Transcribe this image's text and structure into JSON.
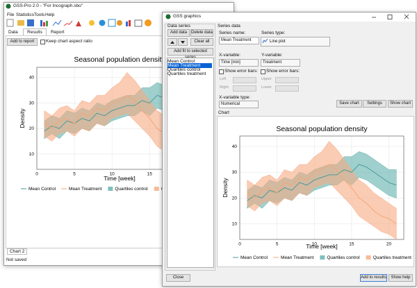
{
  "main_window": {
    "title": "GSS-Pro 2.0 - \"For Incograph.sbo\"",
    "menu": [
      "File",
      "Statistics",
      "Tools",
      "Help"
    ],
    "tabs": [
      "Data",
      "Results",
      "Report"
    ],
    "add_to_report": "Add to report",
    "keep_aspect": "Keep chart aspect ratio",
    "chart_tab": "Chart 2",
    "status": "Not saved"
  },
  "dialog": {
    "title": "GSS graphics",
    "data_series_label": "Data series",
    "add_data": "Add data",
    "delete_data": "Delete data",
    "clear_all": "Clear all",
    "add_fit": "Add fit to selected series",
    "series_list": [
      "Mean Control",
      "Mean Treatment",
      "Quartiles control",
      "Quartiles treatment"
    ],
    "series_data_label": "Series data",
    "series_name_label": "Series name:",
    "series_name": "Mean Treatment",
    "series_type_label": "Series type:",
    "series_type": "Line plot",
    "x_variable_label": "X-variable:",
    "x_variable": "Time [min]",
    "y_variable_label": "Y-variable:",
    "y_variable": "Treatment",
    "show_error_bars": "Show error bars:",
    "left": "Left",
    "right": "Right",
    "upper": "Upper",
    "lower": "Lower",
    "x_variable_type_label": "X-variable type:",
    "x_variable_type": "Numerical",
    "save_chart": "Save chart",
    "settings": "Settings",
    "show_chart": "Show chart",
    "chart_label": "Chart",
    "close": "Close",
    "add_to_results": "Add to results",
    "show_help": "Show help"
  },
  "chart_data": {
    "type": "line",
    "title": "Seasonal population density",
    "x_label": "Time [week]",
    "y_label": "Density",
    "x": [
      1,
      2,
      3,
      4,
      5,
      6,
      7,
      8,
      9,
      10,
      11,
      12,
      13,
      14,
      15,
      16,
      17,
      18,
      19,
      20,
      21
    ],
    "xlim": [
      0,
      22
    ],
    "xticks": [
      0,
      5,
      10,
      15,
      20
    ],
    "ylim": [
      4,
      44
    ],
    "yticks": [
      10,
      20,
      30,
      40
    ],
    "series": [
      {
        "name": "Mean Control",
        "type": "line",
        "color": "#4a9a9a",
        "values": [
          19,
          21,
          20,
          23,
          22,
          24,
          23,
          26,
          25,
          27,
          28,
          29,
          29,
          31,
          30,
          33,
          32,
          30,
          28,
          26,
          25
        ]
      },
      {
        "name": "Mean Treatment",
        "type": "line",
        "color": "#f2a777",
        "values": [
          22,
          20,
          23,
          24,
          22,
          26,
          25,
          28,
          27,
          30,
          31,
          33,
          31,
          27,
          24,
          20,
          18,
          15,
          13,
          12,
          10
        ]
      },
      {
        "name": "Quartiles control",
        "type": "band",
        "color": "#5fb0ac",
        "lower": [
          16,
          18,
          16,
          19,
          18,
          20,
          19,
          22,
          21,
          23,
          24,
          25,
          25,
          27,
          25,
          28,
          27,
          25,
          23,
          21,
          20
        ],
        "upper": [
          23,
          25,
          24,
          27,
          26,
          28,
          27,
          30,
          29,
          31,
          32,
          33,
          33,
          36,
          36,
          38,
          37,
          35,
          33,
          31,
          31
        ]
      },
      {
        "name": "Quartiles treatment",
        "type": "band",
        "color": "#f6aa82",
        "lower": [
          17,
          15,
          18,
          19,
          17,
          20,
          19,
          22,
          21,
          24,
          25,
          26,
          23,
          20,
          17,
          13,
          11,
          9,
          7,
          6,
          4
        ],
        "upper": [
          27,
          25,
          28,
          29,
          27,
          31,
          30,
          33,
          33,
          36,
          38,
          42,
          39,
          35,
          31,
          27,
          25,
          22,
          20,
          18,
          16
        ]
      }
    ]
  }
}
